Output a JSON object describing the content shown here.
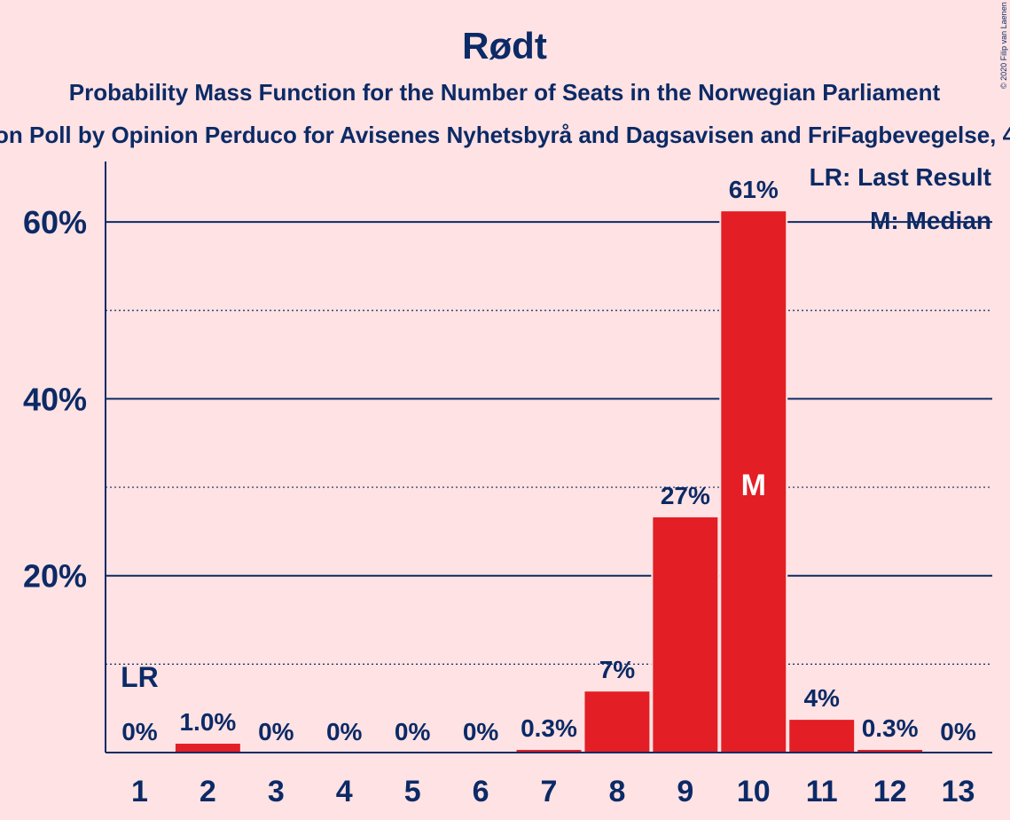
{
  "colors": {
    "background": "#FFE2E3",
    "bar": "#E31E24",
    "text": "#0B2A66"
  },
  "copyright": "© 2020 Filip van Laenen",
  "chart_data": {
    "type": "bar",
    "title": "Rødt",
    "subtitle": "Probability Mass Function for the Number of Seats in the Norwegian Parliament",
    "subtitle2": "on Poll by Opinion Perduco for Avisenes Nyhetsbyrå and Dagsavisen and FriFagbevegelse, 4–",
    "categories": [
      "1",
      "2",
      "3",
      "4",
      "5",
      "6",
      "7",
      "8",
      "9",
      "10",
      "11",
      "12",
      "13"
    ],
    "values": [
      0,
      1.0,
      0,
      0,
      0,
      0,
      0.3,
      7,
      27,
      61,
      4,
      0.3,
      0
    ],
    "value_labels": [
      "0%",
      "1.0%",
      "0%",
      "0%",
      "0%",
      "0%",
      "0.3%",
      "7%",
      "27%",
      "61%",
      "4%",
      "0.3%",
      "0%"
    ],
    "plot_values": [
      0,
      1.0,
      0,
      0,
      0,
      0,
      0.3,
      6.9,
      26.6,
      61.2,
      3.7,
      0.3,
      0
    ],
    "ylim": [
      0,
      66
    ],
    "yticks": [
      20,
      40,
      60
    ],
    "ytick_labels": [
      "20%",
      "40%",
      "60%"
    ],
    "minor_gridlines": [
      10,
      30,
      50
    ],
    "last_result_index": 0,
    "last_result_marker": "LR",
    "median_index": 9,
    "median_marker": "M",
    "legend": [
      "LR: Last Result",
      "M: Median"
    ],
    "legend_position": "top-right"
  }
}
